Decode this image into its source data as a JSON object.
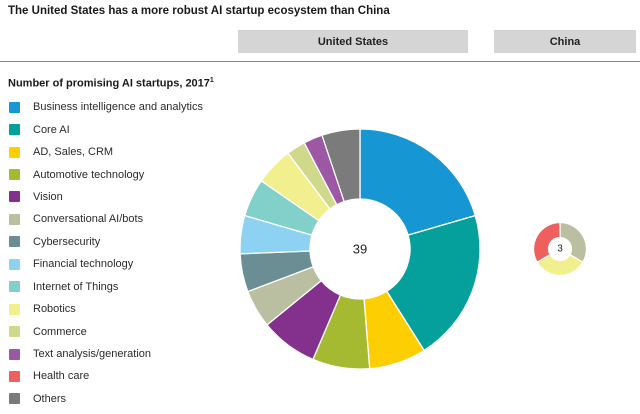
{
  "title": "The United States has a more robust AI startup ecosystem than China",
  "columns": {
    "left": "United States",
    "right": "China"
  },
  "subtitle": {
    "text": "Number of promising AI startups, 2017",
    "superscript": "1"
  },
  "colors": {
    "header_bar": "#d5d5d5",
    "rule": "#8a8a8a"
  },
  "legend": {
    "items": [
      {
        "label": "Business intelligence and analytics",
        "color": "#1697d4"
      },
      {
        "label": "Core AI",
        "color": "#05a09b"
      },
      {
        "label": "AD, Sales, CRM",
        "color": "#fdce02"
      },
      {
        "label": "Automotive technology",
        "color": "#a5ba30"
      },
      {
        "label": "Vision",
        "color": "#84308d"
      },
      {
        "label": "Conversational AI/bots",
        "color": "#b9bfa0"
      },
      {
        "label": "Cybersecurity",
        "color": "#6b8e94"
      },
      {
        "label": "Financial technology",
        "color": "#8dd2f2"
      },
      {
        "label": "Internet of Things",
        "color": "#82d0ca"
      },
      {
        "label": "Robotics",
        "color": "#f2ef8f"
      },
      {
        "label": "Commerce",
        "color": "#d0d88b"
      },
      {
        "label": "Text analysis/generation",
        "color": "#9c58a5"
      },
      {
        "label": "Health care",
        "color": "#ee5f5e"
      },
      {
        "label": "Others",
        "color": "#7b7b7b"
      }
    ]
  },
  "chart_data": [
    {
      "type": "pie",
      "variant": "donut",
      "region": "United States",
      "title": "Number of promising AI startups, 2017",
      "total": 39,
      "center_label": "39",
      "start_angle_deg": 0,
      "clockwise": true,
      "segments": [
        {
          "label": "Business intelligence and analytics",
          "value": 8,
          "color": "#1697d4"
        },
        {
          "label": "Core AI",
          "value": 8,
          "color": "#05a09b"
        },
        {
          "label": "AD, Sales, CRM",
          "value": 3,
          "color": "#fdce02"
        },
        {
          "label": "Automotive technology",
          "value": 3,
          "color": "#a5ba30"
        },
        {
          "label": "Vision",
          "value": 3,
          "color": "#84308d"
        },
        {
          "label": "Conversational AI/bots",
          "value": 2,
          "color": "#b9bfa0"
        },
        {
          "label": "Cybersecurity",
          "value": 2,
          "color": "#6b8e94"
        },
        {
          "label": "Financial technology",
          "value": 2,
          "color": "#8dd2f2"
        },
        {
          "label": "Internet of Things",
          "value": 2,
          "color": "#82d0ca"
        },
        {
          "label": "Robotics",
          "value": 2,
          "color": "#f2ef8f"
        },
        {
          "label": "Commerce",
          "value": 1,
          "color": "#d0d88b"
        },
        {
          "label": "Text analysis/generation",
          "value": 1,
          "color": "#9c58a5"
        },
        {
          "label": "Others",
          "value": 2,
          "color": "#7b7b7b"
        }
      ]
    },
    {
      "type": "pie",
      "variant": "donut",
      "region": "China",
      "title": "Number of promising AI startups, 2017",
      "total": 3,
      "center_label": "3",
      "start_angle_deg": 0,
      "clockwise": true,
      "segments": [
        {
          "label": "Conversational AI/bots",
          "value": 1,
          "color": "#b9bfa0"
        },
        {
          "label": "Robotics",
          "value": 1,
          "color": "#f2ef8f"
        },
        {
          "label": "Health care",
          "value": 1,
          "color": "#ee5f5e"
        }
      ]
    }
  ]
}
